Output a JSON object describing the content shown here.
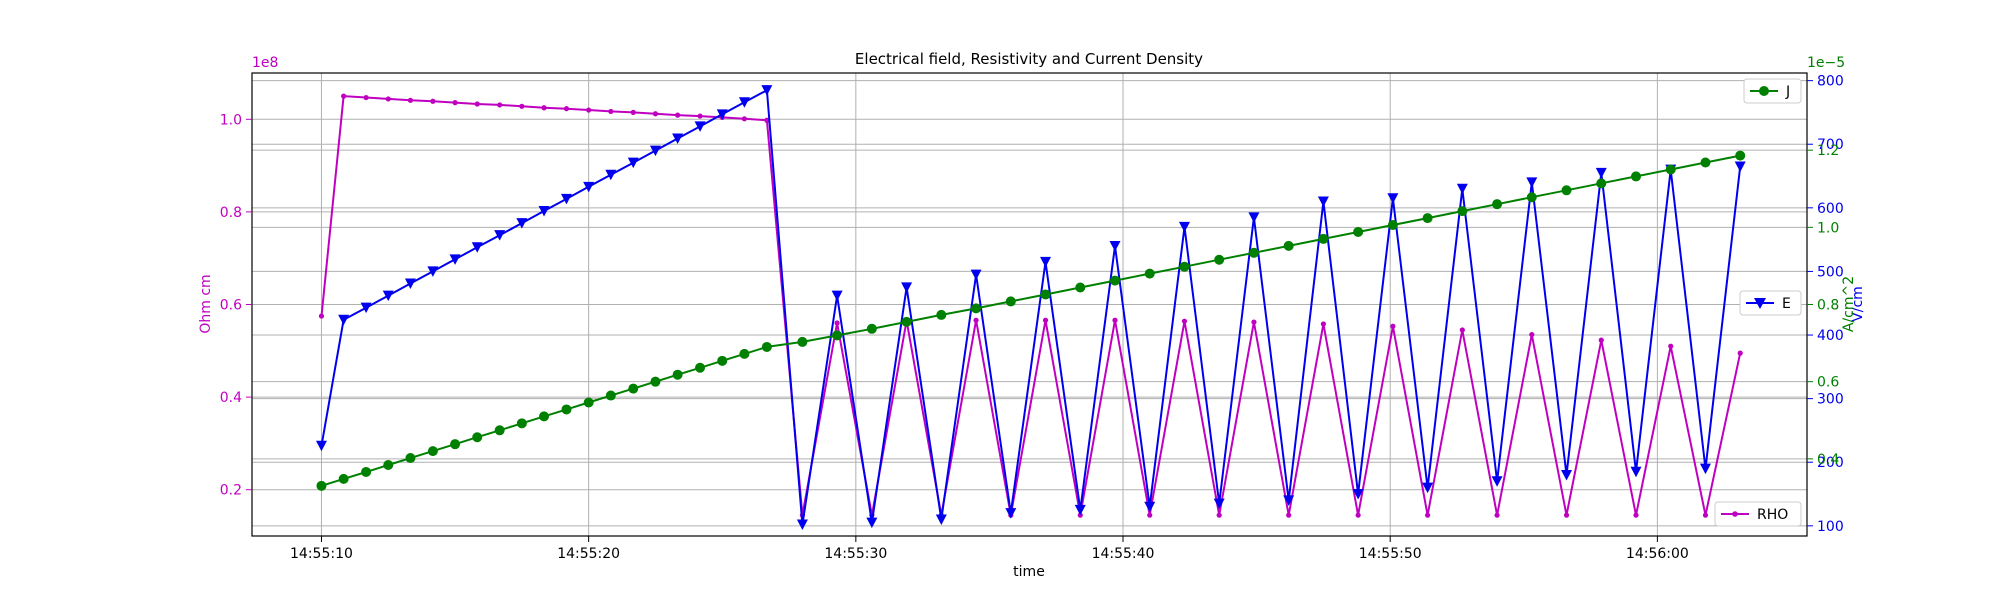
{
  "chart_data": {
    "type": "line",
    "title": "Electrical field, Resistivity and Current Density",
    "xlabel": "time",
    "x_tick_labels": [
      "14:55:10",
      "14:55:20",
      "14:55:30",
      "14:55:40",
      "14:55:50",
      "14:56:00"
    ],
    "x_tick_values": [
      10,
      20,
      30,
      40,
      50,
      60
    ],
    "xlim": [
      7.4,
      65.6
    ],
    "grid": true,
    "axes": {
      "rho": {
        "label": "Ohm cm",
        "offset_text": "1e8",
        "color": "#c000c0",
        "ylim": [
          0.1,
          1.1
        ],
        "ticks": [
          0.2,
          0.4,
          0.6,
          0.8,
          1.0
        ],
        "tick_labels": [
          "0.2",
          "0.4",
          "0.6",
          "0.8",
          "1.0"
        ]
      },
      "e": {
        "label": "V/cm",
        "color": "#0000ee",
        "ylim": [
          84,
          812
        ],
        "ticks": [
          100,
          200,
          300,
          400,
          500,
          600,
          700,
          800
        ],
        "tick_labels": [
          "100",
          "200",
          "300",
          "400",
          "500",
          "600",
          "700",
          "800"
        ]
      },
      "j": {
        "label": "A/cm^2",
        "offset_text": "1e−5",
        "color": "#008000",
        "ylim": [
          0.2,
          1.4
        ],
        "ticks": [
          0.4,
          0.6,
          0.8,
          1.0,
          1.2
        ],
        "tick_labels": [
          "0.4",
          "0.6",
          "0.8",
          "1.0",
          "1.2"
        ]
      }
    },
    "legends": {
      "j": {
        "label": "J",
        "placement": "upper-right"
      },
      "e": {
        "label": "E",
        "placement": "center-right"
      },
      "rho": {
        "label": "RHO",
        "placement": "lower-right"
      }
    },
    "series": [
      {
        "name": "RHO",
        "axis": "rho",
        "color": "#c000c0",
        "marker": "dot",
        "x": [
          10.0,
          10.83,
          11.67,
          12.5,
          13.33,
          14.17,
          15.0,
          15.83,
          16.67,
          17.5,
          18.33,
          19.17,
          20.0,
          20.83,
          21.67,
          22.5,
          23.33,
          24.17,
          25.0,
          25.83,
          26.67,
          28.0,
          29.3,
          30.6,
          31.9,
          33.2,
          34.5,
          35.8,
          37.1,
          38.4,
          39.7,
          41.0,
          42.3,
          43.6,
          44.9,
          46.2,
          47.5,
          48.8,
          50.1,
          51.4,
          52.7,
          54.0,
          55.3,
          56.6,
          57.9,
          59.2,
          60.5,
          61.8,
          63.1
        ],
        "values": [
          0.575,
          1.05,
          1.047,
          1.044,
          1.041,
          1.039,
          1.036,
          1.033,
          1.031,
          1.028,
          1.025,
          1.023,
          1.02,
          1.017,
          1.015,
          1.012,
          1.009,
          1.007,
          1.004,
          1.001,
          0.998,
          0.145,
          0.56,
          0.145,
          0.565,
          0.145,
          0.566,
          0.145,
          0.566,
          0.145,
          0.566,
          0.145,
          0.564,
          0.145,
          0.562,
          0.145,
          0.558,
          0.145,
          0.553,
          0.145,
          0.545,
          0.145,
          0.535,
          0.145,
          0.523,
          0.145,
          0.51,
          0.145,
          0.495
        ]
      },
      {
        "name": "E",
        "axis": "e",
        "color": "#0000ee",
        "marker": "triangle-down",
        "x": [
          10.0,
          10.83,
          11.67,
          12.5,
          13.33,
          14.17,
          15.0,
          15.83,
          16.67,
          17.5,
          18.33,
          19.17,
          20.0,
          20.83,
          21.67,
          22.5,
          23.33,
          24.17,
          25.0,
          25.83,
          26.67,
          28.0,
          29.3,
          30.6,
          31.9,
          33.2,
          34.5,
          35.8,
          37.1,
          38.4,
          39.7,
          41.0,
          42.3,
          43.6,
          44.9,
          46.2,
          47.5,
          48.8,
          50.1,
          51.4,
          52.7,
          54.0,
          55.3,
          56.6,
          57.9,
          59.2,
          60.5,
          61.8,
          63.1
        ],
        "values": [
          226,
          424,
          443,
          462,
          481,
          500,
          519,
          538,
          557,
          576,
          595,
          614,
          633,
          652,
          671,
          690,
          709,
          728,
          747,
          766,
          785,
          102,
          462,
          105,
          475,
          110,
          495,
          120,
          515,
          125,
          540,
          130,
          570,
          135,
          585,
          140,
          610,
          150,
          615,
          160,
          630,
          170,
          640,
          180,
          655,
          185,
          660,
          190,
          665
        ]
      },
      {
        "name": "J",
        "axis": "j",
        "color": "#008000",
        "marker": "circle",
        "x": [
          10.0,
          10.83,
          11.67,
          12.5,
          13.33,
          14.17,
          15.0,
          15.83,
          16.67,
          17.5,
          18.33,
          19.17,
          20.0,
          20.83,
          21.67,
          22.5,
          23.33,
          24.17,
          25.0,
          25.83,
          26.67,
          28.0,
          29.3,
          30.6,
          31.9,
          33.2,
          34.5,
          35.8,
          37.1,
          38.4,
          39.7,
          41.0,
          42.3,
          43.6,
          44.9,
          46.2,
          47.5,
          48.8,
          50.1,
          51.4,
          52.7,
          54.0,
          55.3,
          56.6,
          57.9,
          59.2,
          60.5,
          61.8,
          63.1
        ],
        "values": [
          0.33,
          0.348,
          0.366,
          0.384,
          0.402,
          0.42,
          0.438,
          0.456,
          0.474,
          0.492,
          0.51,
          0.528,
          0.546,
          0.564,
          0.582,
          0.6,
          0.618,
          0.636,
          0.654,
          0.672,
          0.69,
          0.703,
          0.72,
          0.737,
          0.755,
          0.773,
          0.79,
          0.808,
          0.826,
          0.844,
          0.862,
          0.88,
          0.898,
          0.916,
          0.934,
          0.952,
          0.97,
          0.988,
          1.006,
          1.024,
          1.042,
          1.06,
          1.078,
          1.096,
          1.114,
          1.132,
          1.15,
          1.168,
          1.186
        ]
      }
    ]
  }
}
